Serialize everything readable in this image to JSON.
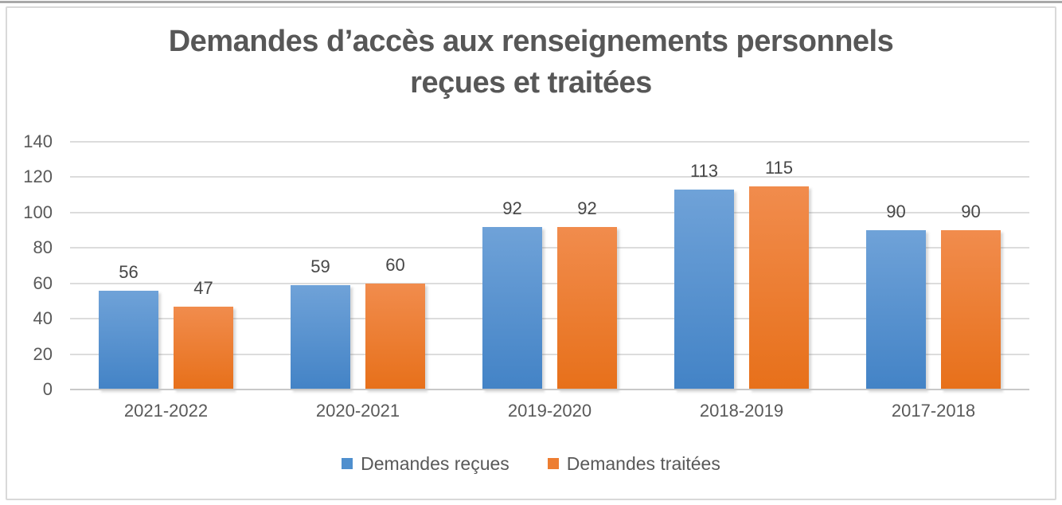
{
  "page": {
    "background": "#ffffff",
    "top_rule_color": "#a9a9a9",
    "frame_border_color": "#d9d9d9"
  },
  "chart_data": {
    "type": "bar",
    "title": "Demandes d’accès aux renseignements personnels reçues et traitées",
    "title_lines": [
      "Demandes d’accès aux renseignements personnels",
      "reçues et traitées"
    ],
    "categories": [
      "2021-2022",
      "2020-2021",
      "2019-2020",
      "2018-2019",
      "2017-2018"
    ],
    "series": [
      {
        "name": "Demandes reçues",
        "values": [
          56,
          59,
          92,
          113,
          90
        ],
        "legend_color": "#4f8fce",
        "bar_gradient_top": "#6fa2d8",
        "bar_gradient_bottom": "#4383c6"
      },
      {
        "name": "Demandes traitées",
        "values": [
          47,
          60,
          92,
          115,
          90
        ],
        "legend_color": "#ed7d31",
        "bar_gradient_top": "#f18c4d",
        "bar_gradient_bottom": "#e7701a"
      }
    ],
    "ylim": [
      0,
      140
    ],
    "yticks": [
      0,
      20,
      40,
      60,
      80,
      100,
      120,
      140
    ],
    "grid": true,
    "data_labels": true,
    "legend_position": "bottom",
    "text_color": "#595959",
    "data_label_color": "#474747",
    "gridline_color": "#dcdcdc",
    "axis_line_color": "#c8c8c8"
  }
}
